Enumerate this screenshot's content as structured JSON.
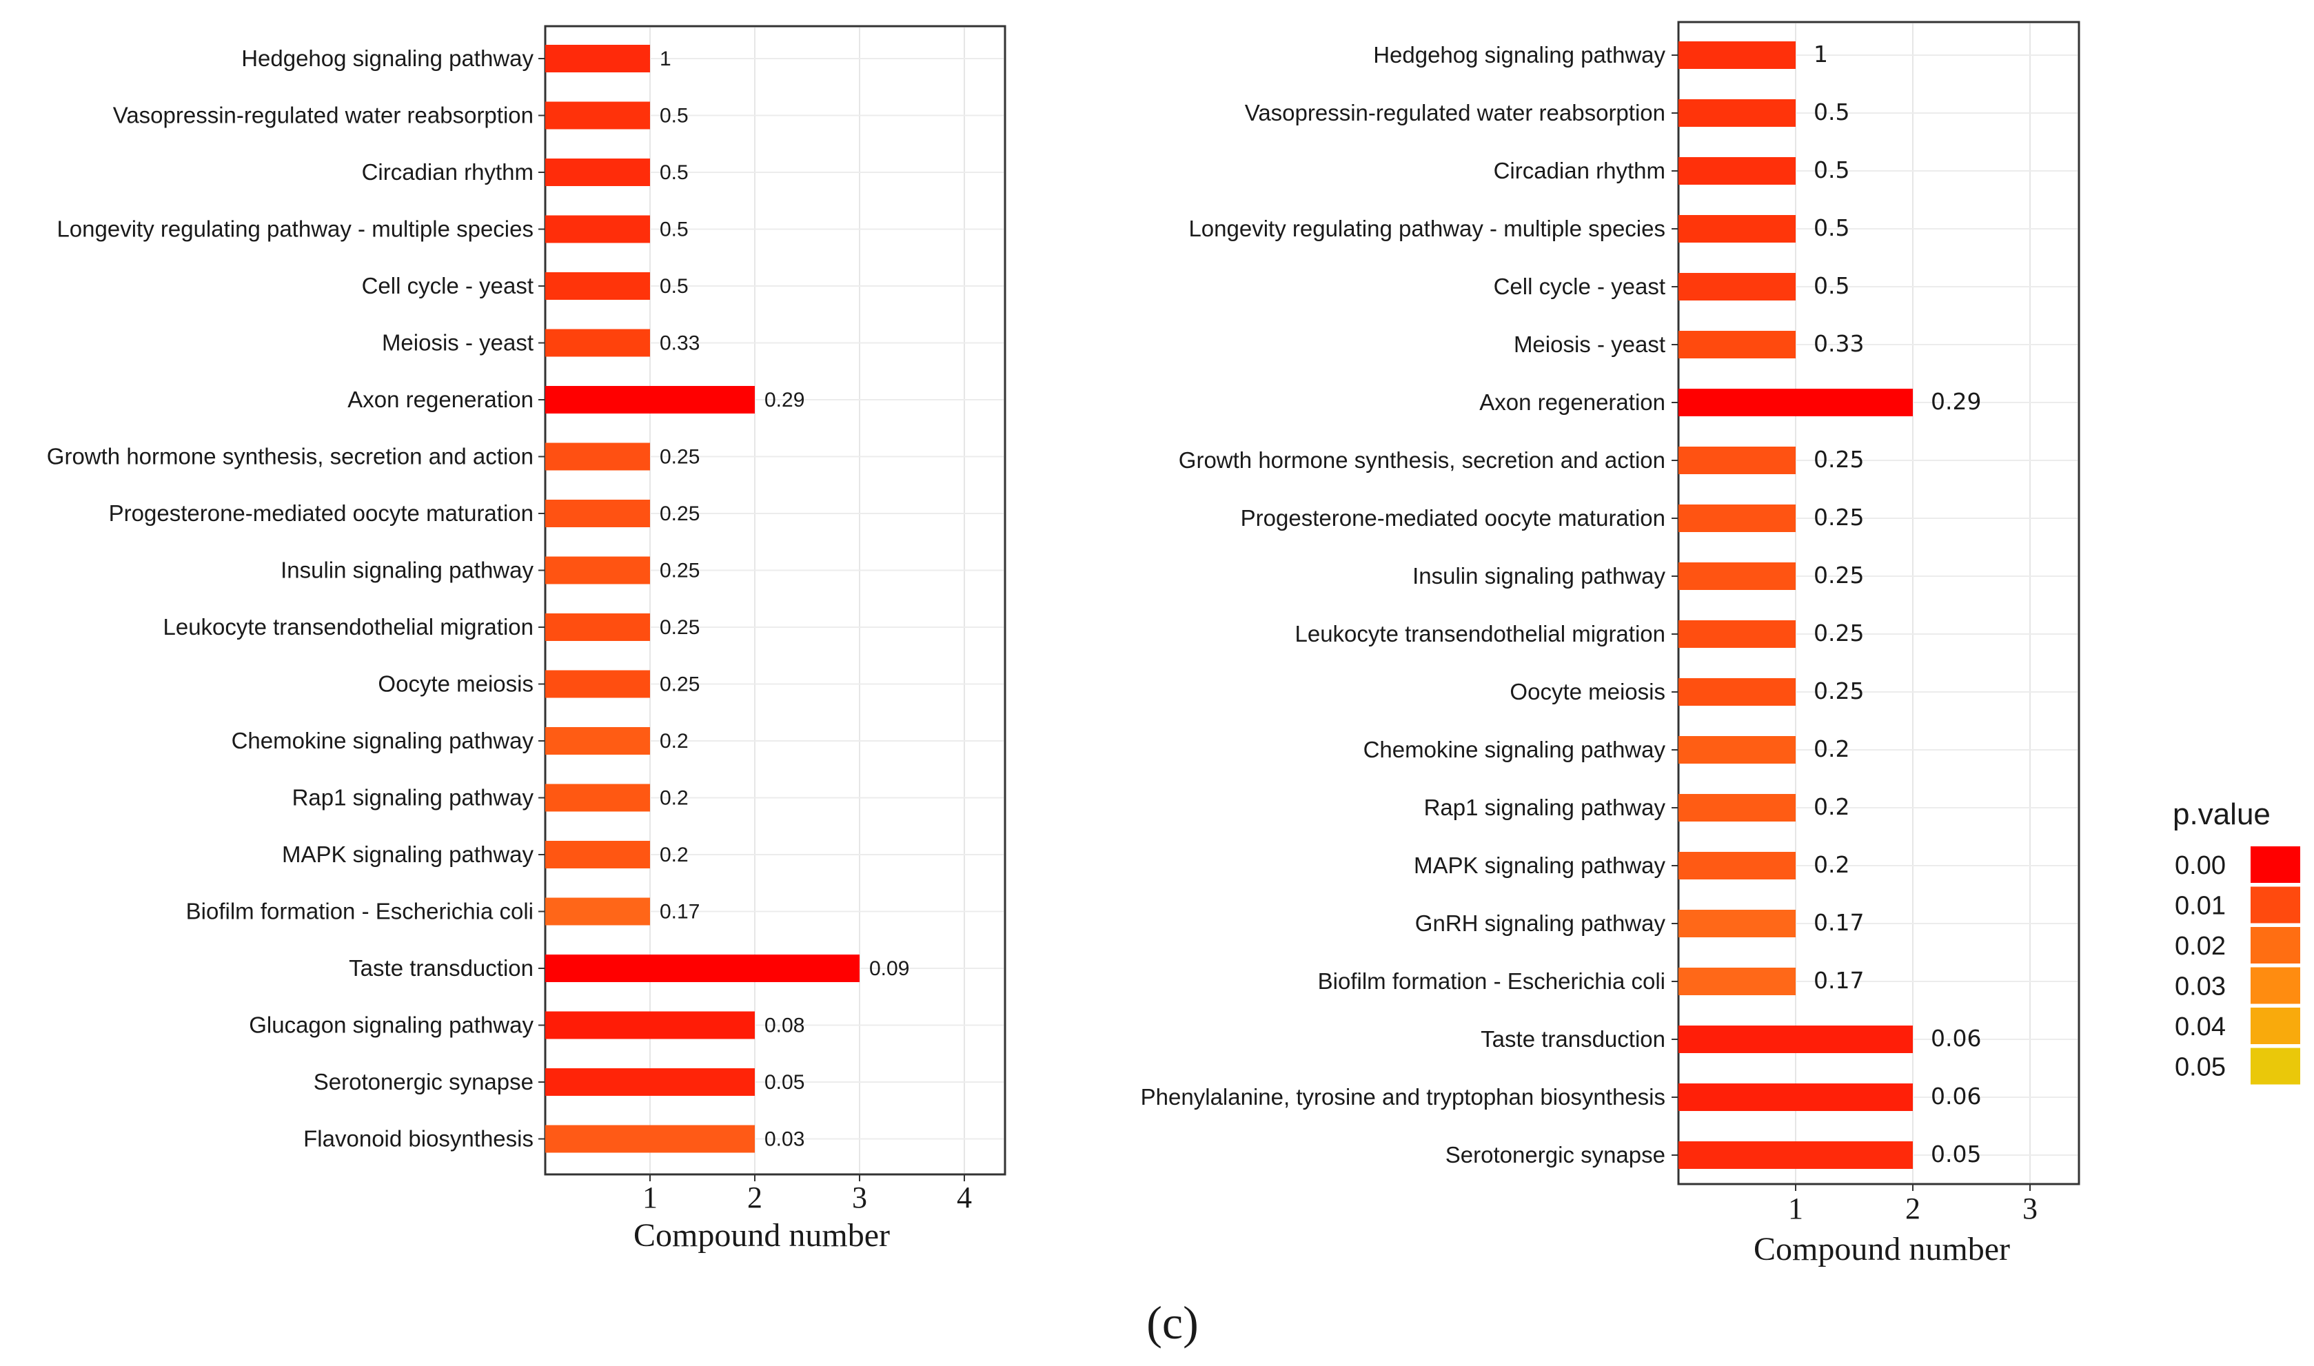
{
  "panel_label": "(c)",
  "legend": {
    "title": "p.value",
    "items": [
      {
        "label": "0.00",
        "color": "#ff0000"
      },
      {
        "label": "0.01",
        "color": "#ff4a0e"
      },
      {
        "label": "0.02",
        "color": "#ff6e12"
      },
      {
        "label": "0.03",
        "color": "#ff8c10"
      },
      {
        "label": "0.04",
        "color": "#f9aa0c"
      },
      {
        "label": "0.05",
        "color": "#eac80a"
      }
    ]
  },
  "chart_data": [
    {
      "type": "bar",
      "orientation": "horizontal",
      "xlabel": "Compound number",
      "xlim": [
        0,
        4.3
      ],
      "xticks": [
        "1",
        "2",
        "3",
        "4"
      ],
      "categories": [
        "Hedgehog signaling pathway",
        "Vasopressin-regulated water reabsorption",
        "Circadian rhythm",
        "Longevity regulating pathway - multiple species",
        "Cell cycle - yeast",
        "Meiosis - yeast",
        "Axon regeneration",
        "Growth hormone synthesis, secretion and action",
        "Progesterone-mediated oocyte maturation",
        "Insulin signaling pathway",
        "Leukocyte transendothelial migration",
        "Oocyte meiosis",
        "Chemokine signaling pathway",
        "Rap1 signaling pathway",
        "MAPK signaling pathway",
        "Biofilm formation - Escherichia coli",
        "Taste transduction",
        "Glucagon signaling pathway",
        "Serotonergic synapse",
        "Flavonoid biosynthesis"
      ],
      "values": [
        1,
        1,
        1,
        1,
        1,
        1,
        2,
        1,
        1,
        1,
        1,
        1,
        1,
        1,
        1,
        1,
        3,
        2,
        2,
        2
      ],
      "bar_labels": [
        "1",
        "0.5",
        "0.5",
        "0.5",
        "0.5",
        "0.33",
        "0.29",
        "0.25",
        "0.25",
        "0.25",
        "0.25",
        "0.25",
        "0.2",
        "0.2",
        "0.2",
        "0.17",
        "0.09",
        "0.08",
        "0.05",
        "0.03"
      ],
      "colors": [
        "#ff2a0a",
        "#ff320a",
        "#ff2c0a",
        "#ff2e0a",
        "#ff340a",
        "#ff420c",
        "#ff0000",
        "#ff5012",
        "#ff5212",
        "#ff5412",
        "#ff4e10",
        "#ff4e10",
        "#ff5c14",
        "#ff5812",
        "#ff5612",
        "#ff6618",
        "#ff0000",
        "#ff1c06",
        "#ff2408",
        "#ff5a16"
      ]
    },
    {
      "type": "bar",
      "orientation": "horizontal",
      "xlabel": "Compound number",
      "xlim": [
        0,
        3.4
      ],
      "xticks": [
        "1",
        "2",
        "3"
      ],
      "categories": [
        "Hedgehog signaling pathway",
        "Vasopressin-regulated water reabsorption",
        "Circadian rhythm",
        "Longevity regulating pathway - multiple species",
        "Cell cycle - yeast",
        "Meiosis - yeast",
        "Axon regeneration",
        "Growth hormone synthesis, secretion and action",
        "Progesterone-mediated oocyte maturation",
        "Insulin signaling pathway",
        "Leukocyte transendothelial migration",
        "Oocyte meiosis",
        "Chemokine signaling pathway",
        "Rap1 signaling pathway",
        "MAPK signaling pathway",
        "GnRH signaling pathway",
        "Biofilm formation - Escherichia coli",
        "Taste transduction",
        "Phenylalanine, tyrosine and tryptophan biosynthesis",
        "Serotonergic synapse"
      ],
      "values": [
        1,
        1,
        1,
        1,
        1,
        1,
        2,
        1,
        1,
        1,
        1,
        1,
        1,
        1,
        1,
        1,
        1,
        2,
        2,
        2
      ],
      "bar_labels": [
        "1",
        "0.5",
        "0.5",
        "0.5",
        "0.5",
        "0.33",
        "0.29",
        "0.25",
        "0.25",
        "0.25",
        "0.25",
        "0.25",
        "0.2",
        "0.2",
        "0.2",
        "0.17",
        "0.17",
        "0.06",
        "0.06",
        "0.05"
      ],
      "colors": [
        "#ff300a",
        "#ff340a",
        "#ff300a",
        "#ff360a",
        "#ff3a0c",
        "#ff4a0e",
        "#ff0000",
        "#ff5212",
        "#ff5412",
        "#ff5412",
        "#ff4e10",
        "#ff5010",
        "#ff5e14",
        "#ff5c14",
        "#ff5a14",
        "#ff6818",
        "#ff6818",
        "#ff1e08",
        "#ff2008",
        "#ff2a0a"
      ]
    }
  ]
}
